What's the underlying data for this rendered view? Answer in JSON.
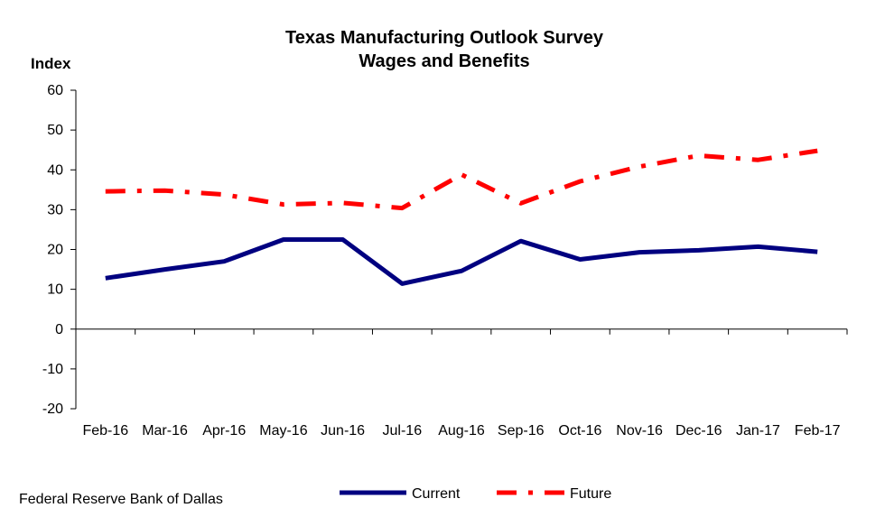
{
  "chart_data": {
    "type": "line",
    "title": "Texas Manufacturing Outlook Survey",
    "subtitle": "Wages and Benefits",
    "ylabel": "Index",
    "xlabel": "",
    "ylim": [
      -20,
      60
    ],
    "yticks": [
      "60",
      "50",
      "40",
      "30",
      "20",
      "10",
      "0",
      "-10",
      "-20"
    ],
    "categories": [
      "Feb-16",
      "Mar-16",
      "Apr-16",
      "May-16",
      "Jun-16",
      "Jul-16",
      "Aug-16",
      "Sep-16",
      "Oct-16",
      "Nov-16",
      "Dec-16",
      "Jan-17",
      "Feb-17"
    ],
    "grid": false,
    "legend": "bottom-center",
    "series": [
      {
        "name": "Current",
        "color": "#000080",
        "style": "solid",
        "values": [
          12.8,
          15.0,
          17.0,
          22.5,
          22.5,
          11.4,
          14.6,
          22.1,
          17.5,
          19.3,
          19.8,
          20.7,
          19.4
        ]
      },
      {
        "name": "Future",
        "color": "#ff0000",
        "style": "dash-dot",
        "values": [
          34.6,
          34.8,
          33.8,
          31.3,
          31.7,
          30.4,
          38.8,
          31.6,
          37.1,
          40.8,
          43.6,
          42.5,
          44.8
        ]
      }
    ]
  },
  "footer": {
    "source": "Federal Reserve Bank of Dallas"
  }
}
